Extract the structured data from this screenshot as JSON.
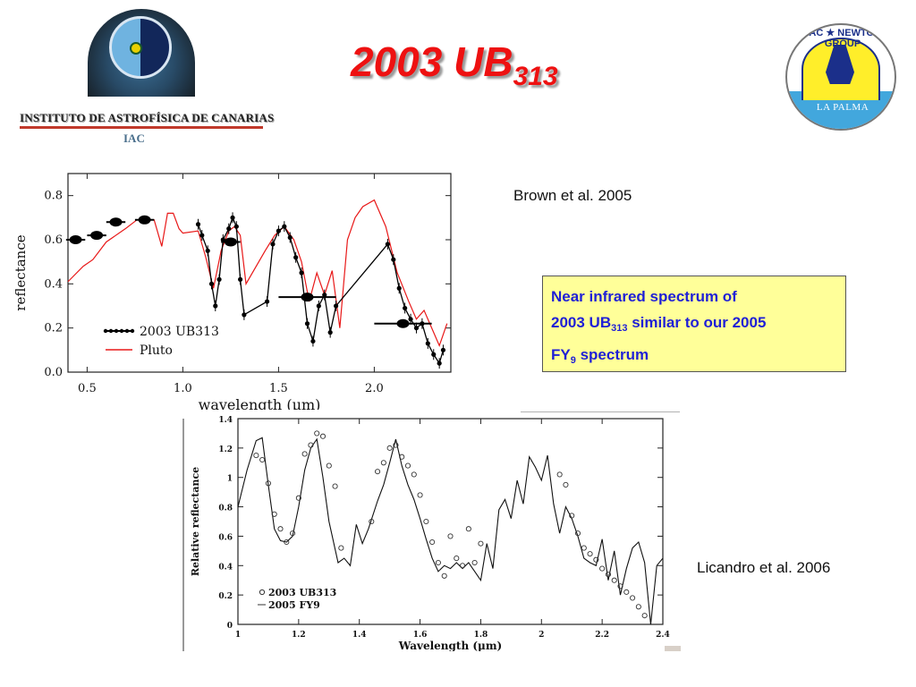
{
  "title": {
    "main": "2003 UB",
    "subscript": "313"
  },
  "logos": {
    "left": {
      "name": "INSTITUTO DE ASTROFÍSICA DE CANARIAS",
      "abbr": "IAC"
    },
    "right": {
      "arc_text": "ISAAC ★ NEWTON ★ GROUP",
      "place": "LA PALMA"
    }
  },
  "references": {
    "top": "Brown et al. 2005",
    "bottom": "Licandro et al. 2006"
  },
  "note": {
    "line1": "Near infrared spectrum of",
    "line2_pre": "2003 UB",
    "line2_sub": "313",
    "line2_post": " similar to our 2005",
    "line3_pre": "FY",
    "line3_sub": "9",
    "line3_post": " spectrum",
    "bg_color": "#ffff99",
    "text_color": "#1f1fd6"
  },
  "chart_data": [
    {
      "type": "line",
      "title": "",
      "source": "Brown et al. 2005",
      "xlabel": "wavelength (μm)",
      "ylabel": "reflectance",
      "xlim": [
        0.4,
        2.4
      ],
      "ylim": [
        0.0,
        0.9
      ],
      "xticks": [
        "0.5",
        "1.0",
        "1.5",
        "2.0"
      ],
      "yticks": [
        "0.0",
        "0.2",
        "0.4",
        "0.6",
        "0.8"
      ],
      "legend": [
        "2003 UB313",
        "Pluto"
      ],
      "legend_position": "lower-left",
      "series": [
        {
          "name": "2003 UB313 (broadband)",
          "style": "large black points with x error bars",
          "x": [
            0.44,
            0.55,
            0.65,
            0.8,
            1.25,
            1.65,
            2.15
          ],
          "y": [
            0.6,
            0.62,
            0.68,
            0.69,
            0.59,
            0.34,
            0.22
          ]
        },
        {
          "name": "2003 UB313",
          "style": "black points with error bars, connected",
          "x": [
            1.08,
            1.1,
            1.13,
            1.15,
            1.17,
            1.19,
            1.21,
            1.24,
            1.26,
            1.28,
            1.3,
            1.32,
            1.44,
            1.47,
            1.5,
            1.53,
            1.56,
            1.59,
            1.62,
            1.65,
            1.68,
            1.71,
            1.74,
            1.77,
            1.8,
            2.07,
            2.1,
            2.13,
            2.16,
            2.19,
            2.22,
            2.25,
            2.28,
            2.31,
            2.34,
            2.36
          ],
          "y": [
            0.67,
            0.62,
            0.55,
            0.4,
            0.3,
            0.42,
            0.6,
            0.65,
            0.7,
            0.66,
            0.42,
            0.26,
            0.32,
            0.58,
            0.64,
            0.66,
            0.61,
            0.52,
            0.45,
            0.22,
            0.14,
            0.3,
            0.35,
            0.18,
            0.3,
            0.58,
            0.51,
            0.38,
            0.29,
            0.24,
            0.2,
            0.22,
            0.13,
            0.08,
            0.04,
            0.1
          ]
        },
        {
          "name": "Pluto",
          "color": "#e81818",
          "style": "line",
          "x": [
            0.4,
            0.48,
            0.53,
            0.6,
            0.7,
            0.76,
            0.8,
            0.85,
            0.89,
            0.92,
            0.95,
            0.98,
            1.0,
            1.08,
            1.12,
            1.16,
            1.2,
            1.24,
            1.27,
            1.3,
            1.33,
            1.43,
            1.48,
            1.53,
            1.58,
            1.62,
            1.66,
            1.7,
            1.74,
            1.78,
            1.82,
            1.86,
            1.9,
            1.94,
            2.0,
            2.06,
            2.12,
            2.18,
            2.22,
            2.26,
            2.3,
            2.34,
            2.38
          ],
          "y": [
            0.41,
            0.48,
            0.51,
            0.59,
            0.65,
            0.69,
            0.69,
            0.69,
            0.57,
            0.72,
            0.72,
            0.65,
            0.63,
            0.64,
            0.52,
            0.38,
            0.55,
            0.64,
            0.66,
            0.62,
            0.4,
            0.55,
            0.62,
            0.66,
            0.6,
            0.5,
            0.32,
            0.45,
            0.35,
            0.46,
            0.2,
            0.6,
            0.7,
            0.75,
            0.78,
            0.66,
            0.45,
            0.32,
            0.24,
            0.28,
            0.2,
            0.12,
            0.22
          ]
        }
      ]
    },
    {
      "type": "scatter",
      "title": "",
      "source": "Licandro et al. 2006",
      "xlabel": "Wavelength (μm)",
      "ylabel": "Relative reflectance",
      "xlim": [
        1.0,
        2.4
      ],
      "ylim": [
        0.0,
        1.4
      ],
      "xticks": [
        "1",
        "1.2",
        "1.4",
        "1.6",
        "1.8",
        "2",
        "2.2",
        "2.4"
      ],
      "yticks": [
        "0",
        "0.2",
        "0.4",
        "0.6",
        "0.8",
        "1",
        "1.2",
        "1.4"
      ],
      "legend": [
        "2003 UB313",
        "2005 FY9"
      ],
      "legend_position": "lower-left",
      "series": [
        {
          "name": "2003 UB313",
          "style": "open circles",
          "x": [
            1.06,
            1.08,
            1.1,
            1.12,
            1.14,
            1.16,
            1.18,
            1.2,
            1.22,
            1.24,
            1.26,
            1.28,
            1.3,
            1.32,
            1.34,
            1.44,
            1.46,
            1.48,
            1.5,
            1.52,
            1.54,
            1.56,
            1.58,
            1.6,
            1.62,
            1.64,
            1.66,
            1.68,
            1.7,
            1.72,
            1.74,
            1.76,
            1.78,
            1.8,
            2.06,
            2.08,
            2.1,
            2.12,
            2.14,
            2.16,
            2.18,
            2.2,
            2.22,
            2.24,
            2.26,
            2.28,
            2.3,
            2.32,
            2.34
          ],
          "y": [
            1.15,
            1.12,
            0.96,
            0.75,
            0.65,
            0.56,
            0.62,
            0.86,
            1.16,
            1.22,
            1.3,
            1.28,
            1.08,
            0.94,
            0.52,
            0.7,
            1.04,
            1.1,
            1.2,
            1.22,
            1.14,
            1.08,
            1.02,
            0.88,
            0.7,
            0.56,
            0.42,
            0.33,
            0.6,
            0.45,
            0.4,
            0.65,
            0.42,
            0.55,
            1.02,
            0.95,
            0.74,
            0.62,
            0.52,
            0.48,
            0.44,
            0.38,
            0.34,
            0.3,
            0.26,
            0.22,
            0.18,
            0.12,
            0.06
          ]
        },
        {
          "name": "2005 FY9",
          "style": "solid line",
          "x": [
            1.0,
            1.03,
            1.06,
            1.08,
            1.1,
            1.12,
            1.14,
            1.16,
            1.18,
            1.2,
            1.22,
            1.24,
            1.26,
            1.28,
            1.3,
            1.33,
            1.35,
            1.37,
            1.39,
            1.41,
            1.43,
            1.46,
            1.48,
            1.5,
            1.52,
            1.54,
            1.56,
            1.58,
            1.6,
            1.62,
            1.64,
            1.66,
            1.68,
            1.7,
            1.72,
            1.74,
            1.76,
            1.78,
            1.8,
            1.82,
            1.84,
            1.86,
            1.88,
            1.9,
            1.92,
            1.94,
            1.96,
            1.98,
            2.0,
            2.02,
            2.04,
            2.06,
            2.08,
            2.1,
            2.12,
            2.14,
            2.16,
            2.18,
            2.2,
            2.22,
            2.24,
            2.26,
            2.28,
            2.3,
            2.32,
            2.34,
            2.36,
            2.38,
            2.4
          ],
          "y": [
            0.8,
            1.05,
            1.25,
            1.27,
            0.95,
            0.65,
            0.57,
            0.56,
            0.6,
            0.8,
            1.05,
            1.2,
            1.26,
            1.0,
            0.7,
            0.42,
            0.45,
            0.4,
            0.68,
            0.55,
            0.65,
            0.84,
            0.95,
            1.1,
            1.26,
            1.08,
            0.95,
            0.85,
            0.72,
            0.58,
            0.45,
            0.36,
            0.4,
            0.38,
            0.42,
            0.38,
            0.42,
            0.36,
            0.3,
            0.55,
            0.38,
            0.78,
            0.85,
            0.72,
            0.98,
            0.82,
            1.14,
            1.07,
            0.98,
            1.15,
            0.82,
            0.62,
            0.8,
            0.72,
            0.6,
            0.45,
            0.42,
            0.4,
            0.58,
            0.3,
            0.5,
            0.2,
            0.38,
            0.52,
            0.56,
            0.42,
            0.0,
            0.4,
            0.45
          ]
        }
      ]
    }
  ]
}
